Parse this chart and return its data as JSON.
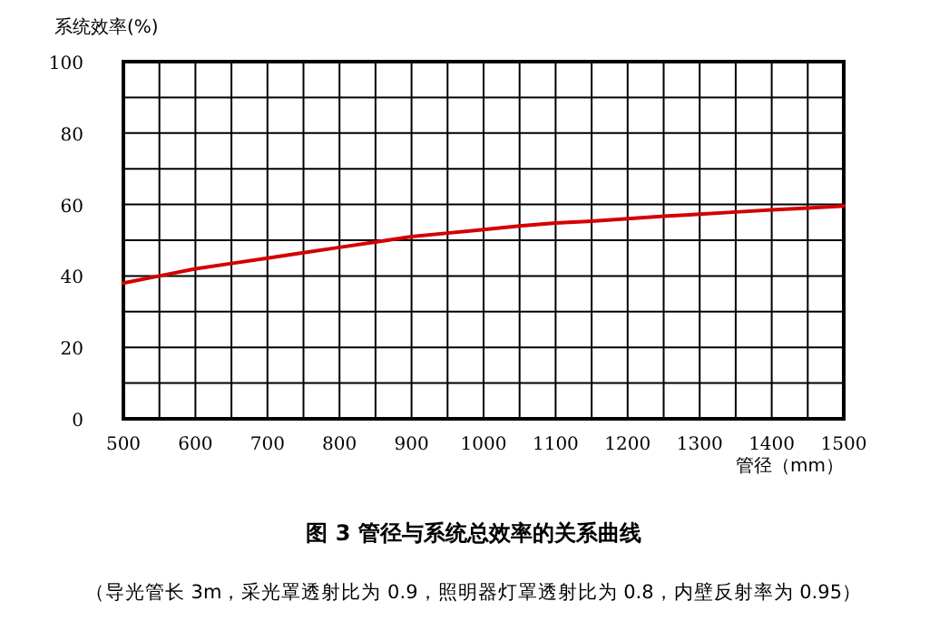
{
  "chart_data": {
    "type": "line",
    "title": "图 3 管径与系统总效率的关系曲线",
    "subtitle": "（导光管长 3m，采光罩透射比为 0.9，照明器灯罩透射比为 0.8，内壁反射率为 0.95）",
    "xlabel": "管径（mm）",
    "ylabel": "系统效率(%)",
    "x": [
      500,
      550,
      600,
      650,
      700,
      750,
      800,
      850,
      900,
      950,
      1000,
      1050,
      1100,
      1150,
      1200,
      1250,
      1300,
      1350,
      1400,
      1450,
      1500
    ],
    "series": [
      {
        "color": "#d40000",
        "values": [
          38,
          40,
          42,
          43.5,
          45,
          46.5,
          48,
          49.5,
          51,
          52,
          53,
          54,
          54.8,
          55.3,
          56,
          56.7,
          57.3,
          57.9,
          58.5,
          59,
          59.6
        ]
      }
    ],
    "xlim": [
      500,
      1500
    ],
    "ylim": [
      0,
      100
    ],
    "xticks": [
      500,
      {
        "value": 550,
        "label": null
      },
      600,
      {
        "value": 650,
        "label": null
      },
      700,
      {
        "value": 750,
        "label": null
      },
      800,
      {
        "value": 850,
        "label": null
      },
      900,
      {
        "value": 950,
        "label": null
      },
      1000,
      {
        "value": 1050,
        "label": null
      },
      1100,
      {
        "value": 1150,
        "label": null
      },
      1200,
      {
        "value": 1250,
        "label": null
      },
      1300,
      {
        "value": 1350,
        "label": null
      },
      1400,
      {
        "value": 1450,
        "label": null
      },
      1500
    ],
    "yticks": [
      0,
      {
        "value": 10,
        "label": null
      },
      20,
      {
        "value": 30,
        "label": null
      },
      40,
      {
        "value": 50,
        "label": null
      },
      60,
      {
        "value": 70,
        "label": null
      },
      80,
      {
        "value": 90,
        "label": null
      },
      100
    ],
    "grid": true,
    "marker": "none",
    "line_style": "solid"
  }
}
